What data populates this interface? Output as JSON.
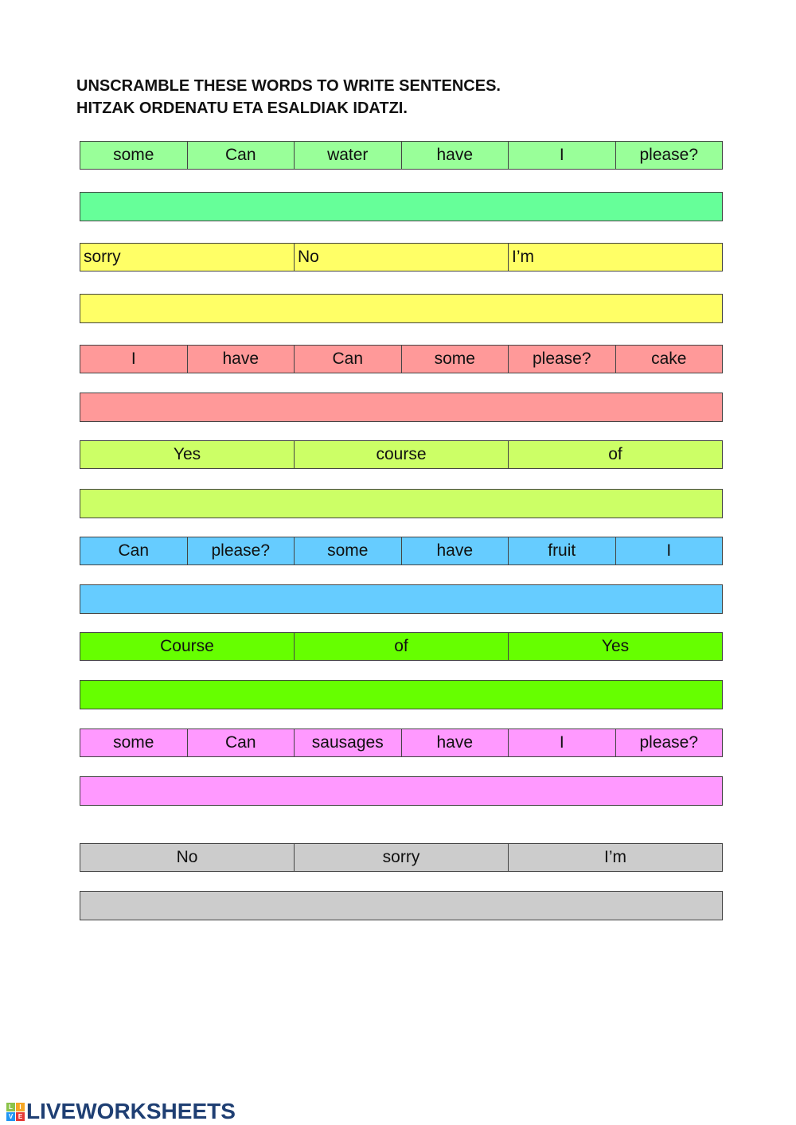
{
  "title_line1": "UNSCRAMBLE THESE WORDS TO WRITE SENTENCES.",
  "title_line2": "HITZAK ORDENATU ETA ESALDIAK IDATZI.",
  "exercises": [
    {
      "words": [
        "some",
        "Can",
        "water",
        "have",
        "I",
        "please?"
      ],
      "word_color": "#99ff99",
      "answer_color": "#66ff99",
      "answer": ""
    },
    {
      "words": [
        "sorry",
        "No",
        "I’m"
      ],
      "word_color": "#ffff66",
      "answer_color": "#ffff66",
      "answer": "",
      "align": "left"
    },
    {
      "words": [
        "I",
        "have",
        "Can",
        "some",
        "please?",
        "cake"
      ],
      "word_color": "#ff9999",
      "answer_color": "#ff9999",
      "answer": ""
    },
    {
      "words": [
        "Yes",
        "course",
        "of"
      ],
      "word_color": "#ccff66",
      "answer_color": "#ccff66",
      "answer": ""
    },
    {
      "words": [
        "Can",
        "please?",
        "some",
        "have",
        "fruit",
        "I"
      ],
      "word_color": "#66ccff",
      "answer_color": "#66ccff",
      "answer": ""
    },
    {
      "words": [
        "Course",
        "of",
        "Yes"
      ],
      "word_color": "#66ff00",
      "answer_color": "#66ff00",
      "answer": ""
    },
    {
      "words": [
        "some",
        "Can",
        "sausages",
        "have",
        "I",
        "please?"
      ],
      "word_color": "#ff99ff",
      "answer_color": "#ff99ff",
      "answer": ""
    },
    {
      "words": [
        "No",
        "sorry",
        "I’m"
      ],
      "word_color": "#cccccc",
      "answer_color": "#cccccc",
      "answer": ""
    }
  ],
  "footer": {
    "logo_text": "LIVEWORKSHEETS",
    "logo_letters": [
      "L",
      "I",
      "V",
      "E"
    ]
  }
}
